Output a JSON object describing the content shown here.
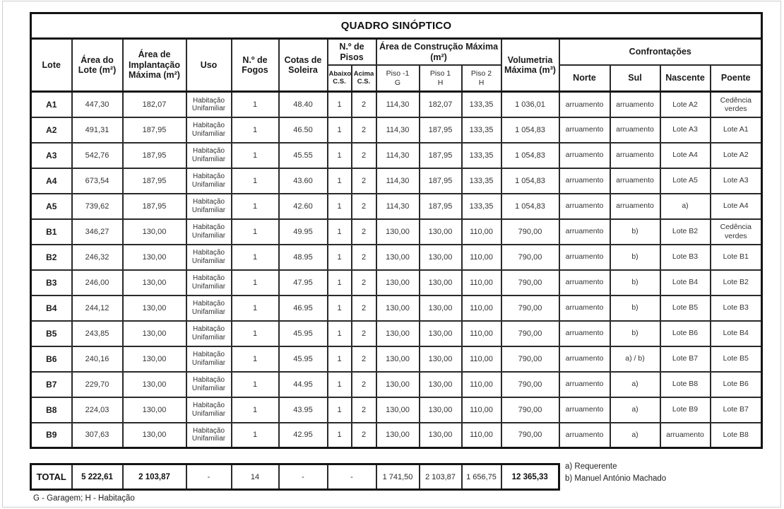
{
  "title": "QUADRO SINÓPTICO",
  "header": {
    "lote": "Lote",
    "area_lote": "Área do Lote (m²)",
    "area_implantacao": "Área de Implantação Máxima (m²)",
    "uso": "Uso",
    "fogos": "N.º de Fogos",
    "cotas": "Cotas de Soleira",
    "pisos_group": "N.º de Pisos",
    "pisos_sub": [
      {
        "label": "Abaixo",
        "sub": "C.S."
      },
      {
        "label": "Acima",
        "sub": "C.S."
      }
    ],
    "construcao_group": "Área de Construção Máxima (m²)",
    "construcao_sub": [
      {
        "label": "Piso -1",
        "sub": "G"
      },
      {
        "label": "Piso 1",
        "sub": "H"
      },
      {
        "label": "Piso 2",
        "sub": "H"
      }
    ],
    "volumetria": "Volumetria Máxima (m³)",
    "confrontacoes_group": "Confrontações",
    "confrontacoes_sub": [
      "Norte",
      "Sul",
      "Nascente",
      "Poente"
    ]
  },
  "rows": [
    {
      "lote": "A1",
      "area_lote": "447,30",
      "area_impl": "182,07",
      "uso": "Habitação Unifamiliar",
      "fogos": "1",
      "cotas": "48.40",
      "abaixo": "1",
      "acima": "2",
      "piso_m1": "114,30",
      "piso_1": "182,07",
      "piso_2": "133,35",
      "vol": "1 036,01",
      "norte": "arruamento",
      "sul": "arruamento",
      "nascente": "Lote A2",
      "poente": "Cedência verdes"
    },
    {
      "lote": "A2",
      "area_lote": "491,31",
      "area_impl": "187,95",
      "uso": "Habitação Unifamiliar",
      "fogos": "1",
      "cotas": "46.50",
      "abaixo": "1",
      "acima": "2",
      "piso_m1": "114,30",
      "piso_1": "187,95",
      "piso_2": "133,35",
      "vol": "1 054,83",
      "norte": "arruamento",
      "sul": "arruamento",
      "nascente": "Lote A3",
      "poente": "Lote A1"
    },
    {
      "lote": "A3",
      "area_lote": "542,76",
      "area_impl": "187,95",
      "uso": "Habitação Unifamiliar",
      "fogos": "1",
      "cotas": "45.55",
      "abaixo": "1",
      "acima": "2",
      "piso_m1": "114,30",
      "piso_1": "187,95",
      "piso_2": "133,35",
      "vol": "1 054,83",
      "norte": "arruamento",
      "sul": "arruamento",
      "nascente": "Lote A4",
      "poente": "Lote A2"
    },
    {
      "lote": "A4",
      "area_lote": "673,54",
      "area_impl": "187,95",
      "uso": "Habitação Unifamiliar",
      "fogos": "1",
      "cotas": "43.60",
      "abaixo": "1",
      "acima": "2",
      "piso_m1": "114,30",
      "piso_1": "187,95",
      "piso_2": "133,35",
      "vol": "1 054,83",
      "norte": "arruamento",
      "sul": "arruamento",
      "nascente": "Lote A5",
      "poente": "Lote A3"
    },
    {
      "lote": "A5",
      "area_lote": "739,62",
      "area_impl": "187,95",
      "uso": "Habitação Unifamiliar",
      "fogos": "1",
      "cotas": "42.60",
      "abaixo": "1",
      "acima": "2",
      "piso_m1": "114,30",
      "piso_1": "187,95",
      "piso_2": "133,35",
      "vol": "1 054,83",
      "norte": "arruamento",
      "sul": "arruamento",
      "nascente": "a)",
      "poente": "Lote A4"
    },
    {
      "lote": "B1",
      "area_lote": "346,27",
      "area_impl": "130,00",
      "uso": "Habitação Unifamiliar",
      "fogos": "1",
      "cotas": "49.95",
      "abaixo": "1",
      "acima": "2",
      "piso_m1": "130,00",
      "piso_1": "130,00",
      "piso_2": "110,00",
      "vol": "790,00",
      "norte": "arruamento",
      "sul": "b)",
      "nascente": "Lote B2",
      "poente": "Cedência verdes"
    },
    {
      "lote": "B2",
      "area_lote": "246,32",
      "area_impl": "130,00",
      "uso": "Habitação Unifamiliar",
      "fogos": "1",
      "cotas": "48.95",
      "abaixo": "1",
      "acima": "2",
      "piso_m1": "130,00",
      "piso_1": "130,00",
      "piso_2": "110,00",
      "vol": "790,00",
      "norte": "arruamento",
      "sul": "b)",
      "nascente": "Lote B3",
      "poente": "Lote B1"
    },
    {
      "lote": "B3",
      "area_lote": "246,00",
      "area_impl": "130,00",
      "uso": "Habitação Unifamiliar",
      "fogos": "1",
      "cotas": "47.95",
      "abaixo": "1",
      "acima": "2",
      "piso_m1": "130,00",
      "piso_1": "130,00",
      "piso_2": "110,00",
      "vol": "790,00",
      "norte": "arruamento",
      "sul": "b)",
      "nascente": "Lote B4",
      "poente": "Lote B2"
    },
    {
      "lote": "B4",
      "area_lote": "244,12",
      "area_impl": "130,00",
      "uso": "Habitação Unifamiliar",
      "fogos": "1",
      "cotas": "46.95",
      "abaixo": "1",
      "acima": "2",
      "piso_m1": "130,00",
      "piso_1": "130,00",
      "piso_2": "110,00",
      "vol": "790,00",
      "norte": "arruamento",
      "sul": "b)",
      "nascente": "Lote B5",
      "poente": "Lote B3"
    },
    {
      "lote": "B5",
      "area_lote": "243,85",
      "area_impl": "130,00",
      "uso": "Habitação Unifamiliar",
      "fogos": "1",
      "cotas": "45.95",
      "abaixo": "1",
      "acima": "2",
      "piso_m1": "130,00",
      "piso_1": "130,00",
      "piso_2": "110,00",
      "vol": "790,00",
      "norte": "arruamento",
      "sul": "b)",
      "nascente": "Lote B6",
      "poente": "Lote B4"
    },
    {
      "lote": "B6",
      "area_lote": "240,16",
      "area_impl": "130,00",
      "uso": "Habitação Unifamiliar",
      "fogos": "1",
      "cotas": "45.95",
      "abaixo": "1",
      "acima": "2",
      "piso_m1": "130,00",
      "piso_1": "130,00",
      "piso_2": "110,00",
      "vol": "790,00",
      "norte": "arruamento",
      "sul": "a) / b)",
      "nascente": "Lote B7",
      "poente": "Lote B5"
    },
    {
      "lote": "B7",
      "area_lote": "229,70",
      "area_impl": "130,00",
      "uso": "Habitação Unifamiliar",
      "fogos": "1",
      "cotas": "44.95",
      "abaixo": "1",
      "acima": "2",
      "piso_m1": "130,00",
      "piso_1": "130,00",
      "piso_2": "110,00",
      "vol": "790,00",
      "norte": "arruamento",
      "sul": "a)",
      "nascente": "Lote B8",
      "poente": "Lote B6"
    },
    {
      "lote": "B8",
      "area_lote": "224,03",
      "area_impl": "130,00",
      "uso": "Habitação Unifamiliar",
      "fogos": "1",
      "cotas": "43.95",
      "abaixo": "1",
      "acima": "2",
      "piso_m1": "130,00",
      "piso_1": "130,00",
      "piso_2": "110,00",
      "vol": "790,00",
      "norte": "arruamento",
      "sul": "a)",
      "nascente": "Lote B9",
      "poente": "Lote B7"
    },
    {
      "lote": "B9",
      "area_lote": "307,63",
      "area_impl": "130,00",
      "uso": "Habitação Unifamiliar",
      "fogos": "1",
      "cotas": "42.95",
      "abaixo": "1",
      "acima": "2",
      "piso_m1": "130,00",
      "piso_1": "130,00",
      "piso_2": "110,00",
      "vol": "790,00",
      "norte": "arruamento",
      "sul": "a)",
      "nascente": "arruamento",
      "poente": "Lote B8"
    }
  ],
  "total": {
    "lote": "TOTAL",
    "area_lote": "5 222,61",
    "area_impl": "2 103,87",
    "uso": "-",
    "fogos": "14",
    "cotas": "-",
    "pisos": "-",
    "piso_m1": "1 741,50",
    "piso_1": "2 103,87",
    "piso_2": "1 656,75",
    "vol": "12 365,33"
  },
  "notes": [
    "a) Requerente",
    "b) Manuel António Machado"
  ],
  "footnote": "G - Garagem; H - Habitação"
}
